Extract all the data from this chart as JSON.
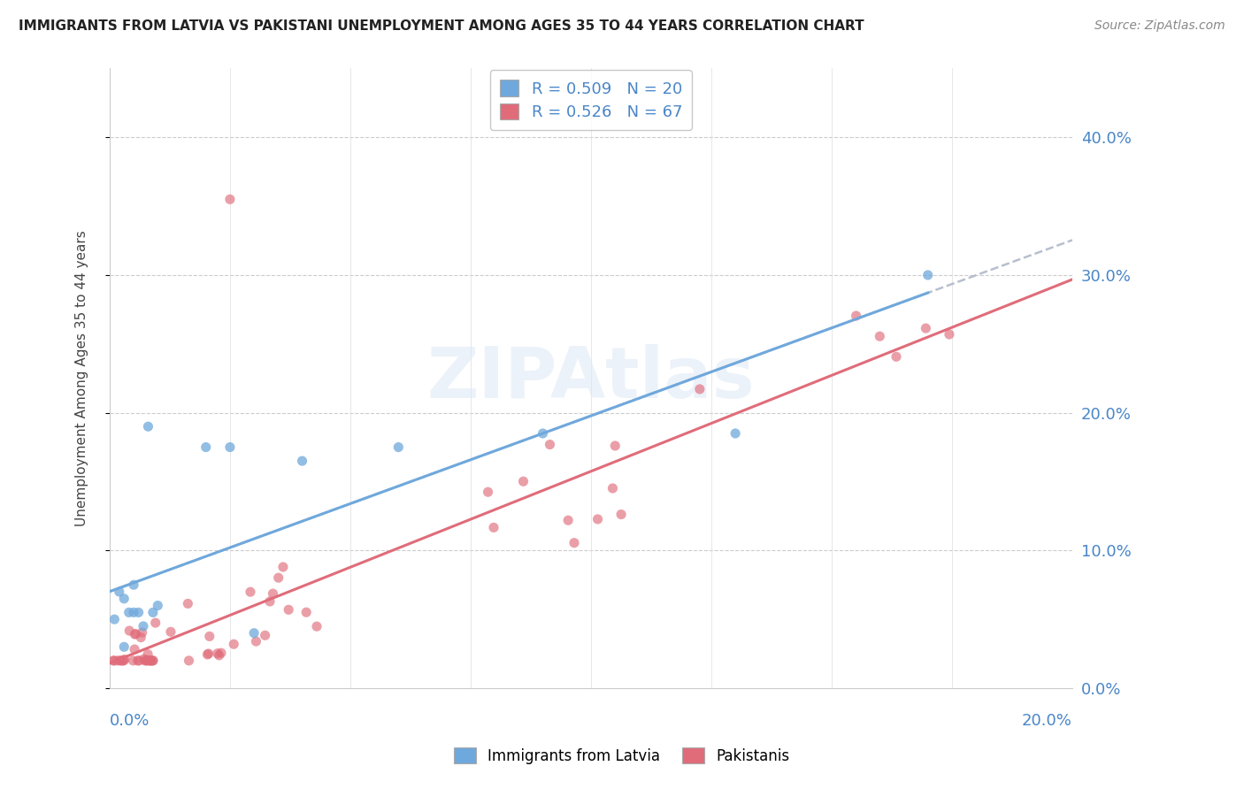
{
  "title": "IMMIGRANTS FROM LATVIA VS PAKISTANI UNEMPLOYMENT AMONG AGES 35 TO 44 YEARS CORRELATION CHART",
  "source": "Source: ZipAtlas.com",
  "ylabel": "Unemployment Among Ages 35 to 44 years",
  "ytick_values": [
    0.0,
    0.1,
    0.2,
    0.3,
    0.4
  ],
  "xtick_values": [
    0.0,
    0.025,
    0.05,
    0.075,
    0.1,
    0.125,
    0.15,
    0.175,
    0.2
  ],
  "xlim": [
    0.0,
    0.2
  ],
  "ylim": [
    0.0,
    0.45
  ],
  "legend_entry1": "R = 0.509   N = 20",
  "legend_entry2": "R = 0.526   N = 67",
  "legend_label1": "Immigrants from Latvia",
  "legend_label2": "Pakistanis",
  "color_blue": "#6fa8dc",
  "color_pink": "#e06c7a",
  "color_blue_text": "#4a86c8",
  "color_dashed": "#b0b8c8",
  "R1": 0.509,
  "N1": 20,
  "R2": 0.526,
  "N2": 67
}
